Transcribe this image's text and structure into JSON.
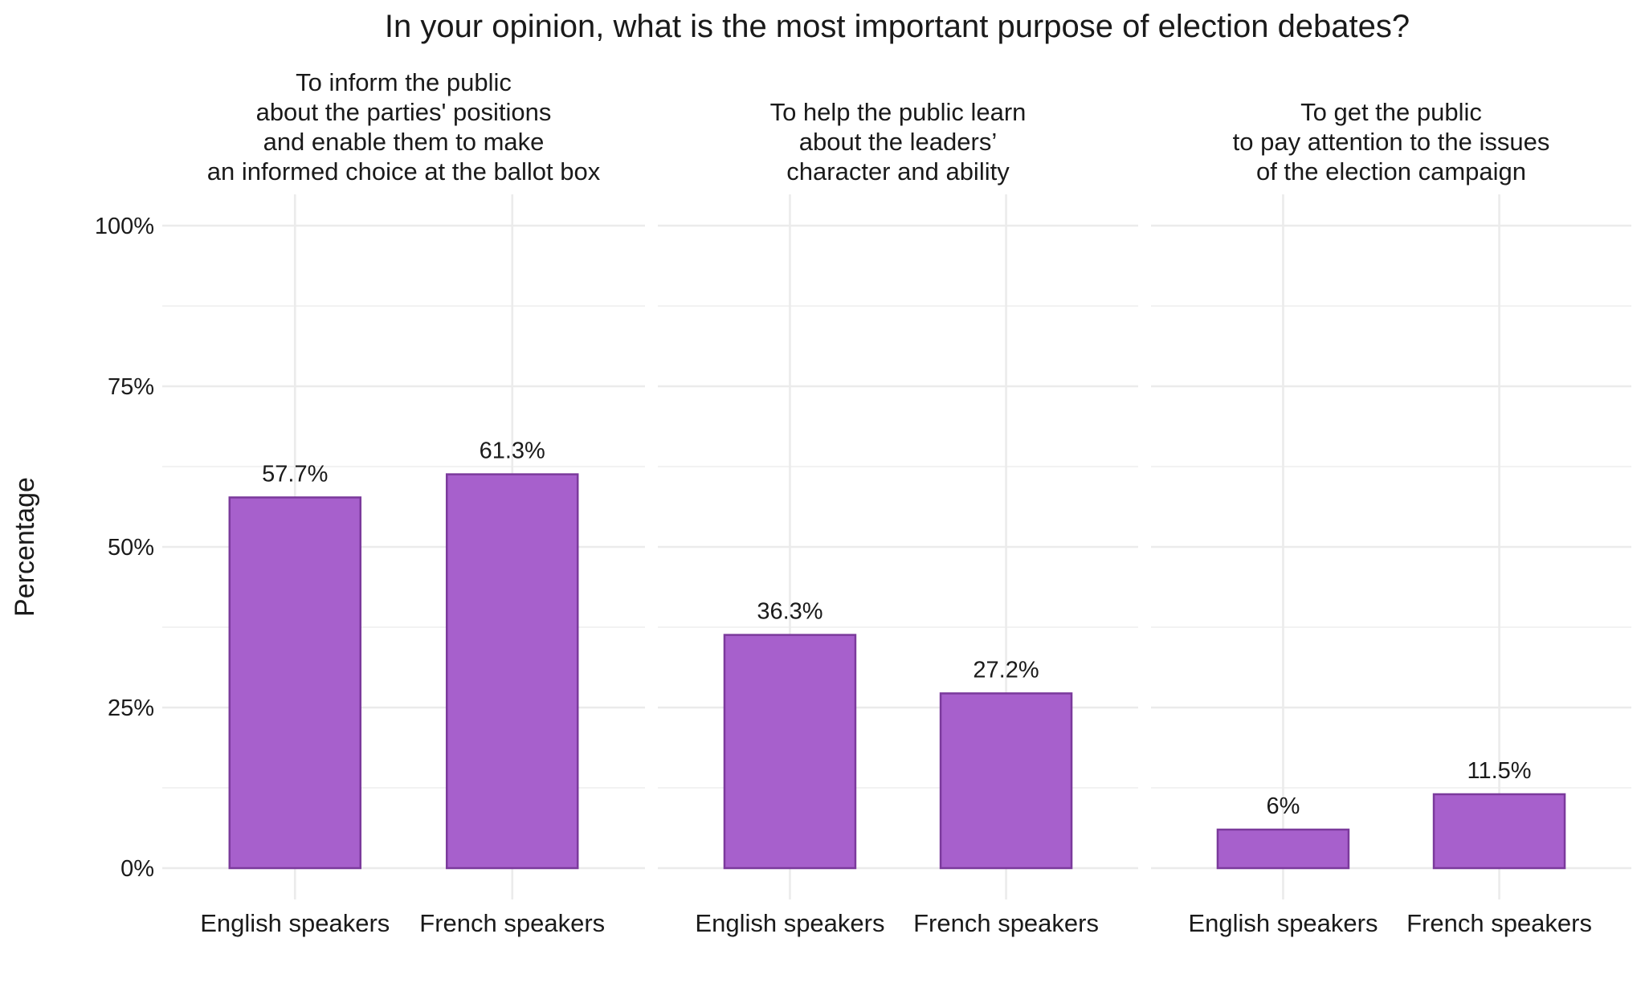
{
  "chart_data": {
    "type": "bar",
    "title": "In your opinion, what is the most important purpose of election debates?",
    "ylabel": "Percentage",
    "xlabel": "",
    "ylim": [
      0,
      100
    ],
    "yticks": [
      "0%",
      "25%",
      "50%",
      "75%",
      "100%"
    ],
    "grid": true,
    "legend": "none",
    "colors": {
      "fill": "#a760cc",
      "stroke": "#7b3a9c",
      "grid": "#ebebeb"
    },
    "categories": [
      "English speakers",
      "French speakers"
    ],
    "panels": [
      {
        "title_lines": [
          "To inform the public",
          "about the parties' positions",
          "and enable them to make",
          "an informed choice at the ballot box"
        ],
        "values": [
          57.7,
          61.3
        ],
        "labels": [
          "57.7%",
          "61.3%"
        ]
      },
      {
        "title_lines": [
          "To help the public learn",
          "about the leaders’",
          "character and ability"
        ],
        "values": [
          36.3,
          27.2
        ],
        "labels": [
          "36.3%",
          "27.2%"
        ]
      },
      {
        "title_lines": [
          "To get the public",
          "to pay attention to the issues",
          "of the election campaign"
        ],
        "values": [
          6,
          11.5
        ],
        "labels": [
          "6%",
          "11.5%"
        ]
      }
    ]
  }
}
